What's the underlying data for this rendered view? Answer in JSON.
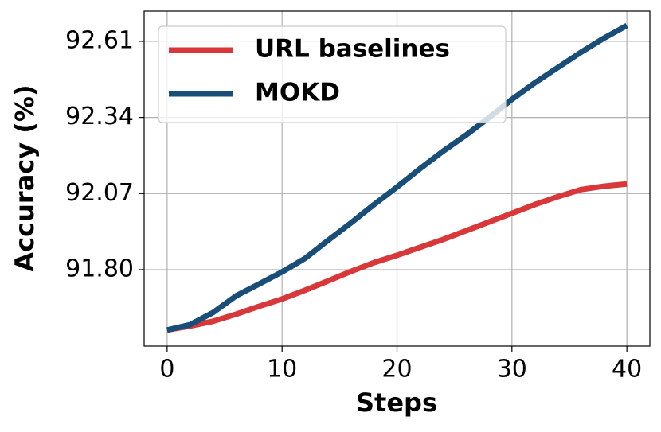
{
  "chart_data": {
    "type": "line",
    "x_label": "Steps",
    "y_label": "Accuracy (%)",
    "x": [
      0,
      2,
      4,
      6,
      8,
      10,
      12,
      14,
      16,
      18,
      20,
      22,
      24,
      26,
      28,
      30,
      32,
      34,
      36,
      38,
      40
    ],
    "series": [
      {
        "name": "URL baselines",
        "color": "#d8383a",
        "values": [
          91.586,
          91.6,
          91.617,
          91.642,
          91.67,
          91.696,
          91.727,
          91.76,
          91.794,
          91.825,
          91.851,
          91.879,
          91.907,
          91.938,
          91.969,
          92.0,
          92.031,
          92.059,
          92.084,
          92.096,
          92.104
        ]
      },
      {
        "name": "MOKD",
        "color": "#184e77",
        "values": [
          91.586,
          91.605,
          91.648,
          91.707,
          91.749,
          91.792,
          91.84,
          91.904,
          91.966,
          92.031,
          92.093,
          92.158,
          92.22,
          92.277,
          92.339,
          92.404,
          92.463,
          92.517,
          92.571,
          92.621,
          92.666
        ]
      }
    ],
    "xlim": [
      -2,
      42
    ],
    "ylim": [
      91.529,
      92.717
    ],
    "xticks": [
      0,
      10,
      20,
      30,
      40
    ],
    "yticks": [
      {
        "value": 91.8,
        "label": "91.80"
      },
      92.07,
      92.34,
      92.61
    ],
    "grid": true,
    "legend": "upper left"
  }
}
